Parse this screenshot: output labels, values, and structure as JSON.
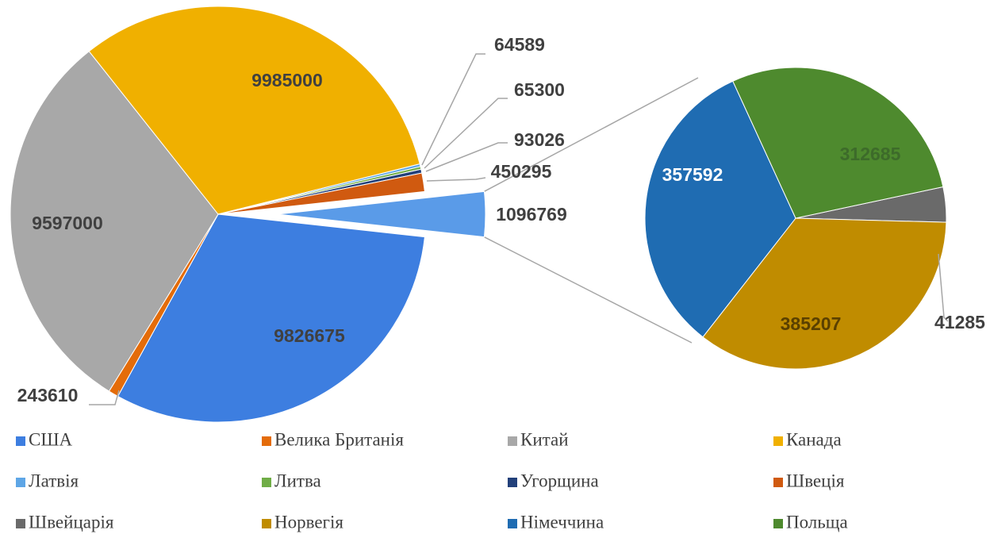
{
  "chart_data": {
    "type": "pie-of-pie",
    "categories": [
      "США",
      "Велика Британія",
      "Китай",
      "Канада",
      "Латвія",
      "Литва",
      "Угорщина",
      "Швеція",
      "Швейцарія",
      "Норвегія",
      "Німеччина",
      "Польща"
    ],
    "values": [
      9826675,
      243610,
      9597000,
      9985000,
      64589,
      65300,
      93026,
      450295,
      41285,
      385207,
      357592,
      312685
    ],
    "colors": [
      "#3d7ee0",
      "#e46c0a",
      "#a8a8a8",
      "#f0b000",
      "#5ea6e6",
      "#70ad47",
      "#22407a",
      "#d05a10",
      "#6a6a6a",
      "#c08c00",
      "#1f6cb2",
      "#4e8a2e"
    ],
    "secondary_count": 4,
    "secondary_sum": 1096769,
    "legend": "bottom"
  }
}
